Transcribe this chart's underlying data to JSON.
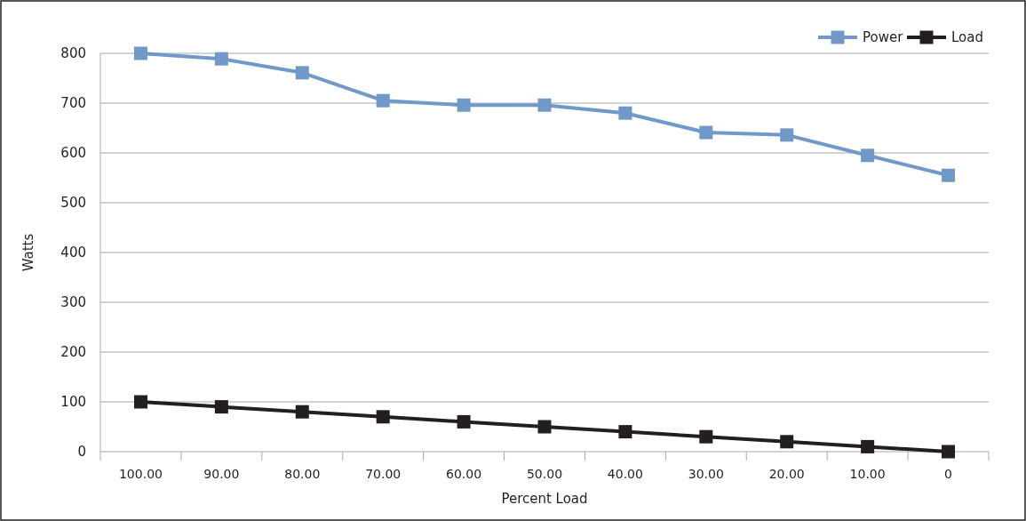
{
  "chart_data": {
    "type": "line",
    "xlabel": "Percent Load",
    "ylabel": "Watts",
    "categories": [
      "100.00",
      "90.00",
      "80.00",
      "70.00",
      "60.00",
      "50.00",
      "40.00",
      "30.00",
      "20.00",
      "10.00",
      "0"
    ],
    "series": [
      {
        "name": "Power",
        "color": "#7099c9",
        "values": [
          800,
          789,
          761,
          705,
          696,
          696,
          680,
          641,
          636,
          595,
          555
        ]
      },
      {
        "name": "Load",
        "color": "#231f20",
        "values": [
          100,
          90,
          80,
          70,
          60,
          50,
          40,
          30,
          20,
          10,
          0
        ]
      }
    ],
    "ylim": [
      0,
      800
    ],
    "yticks": [
      0,
      100,
      200,
      300,
      400,
      500,
      600,
      700,
      800
    ],
    "grid": "y",
    "legend": "top right",
    "marker": "square",
    "line_style": "solid"
  }
}
